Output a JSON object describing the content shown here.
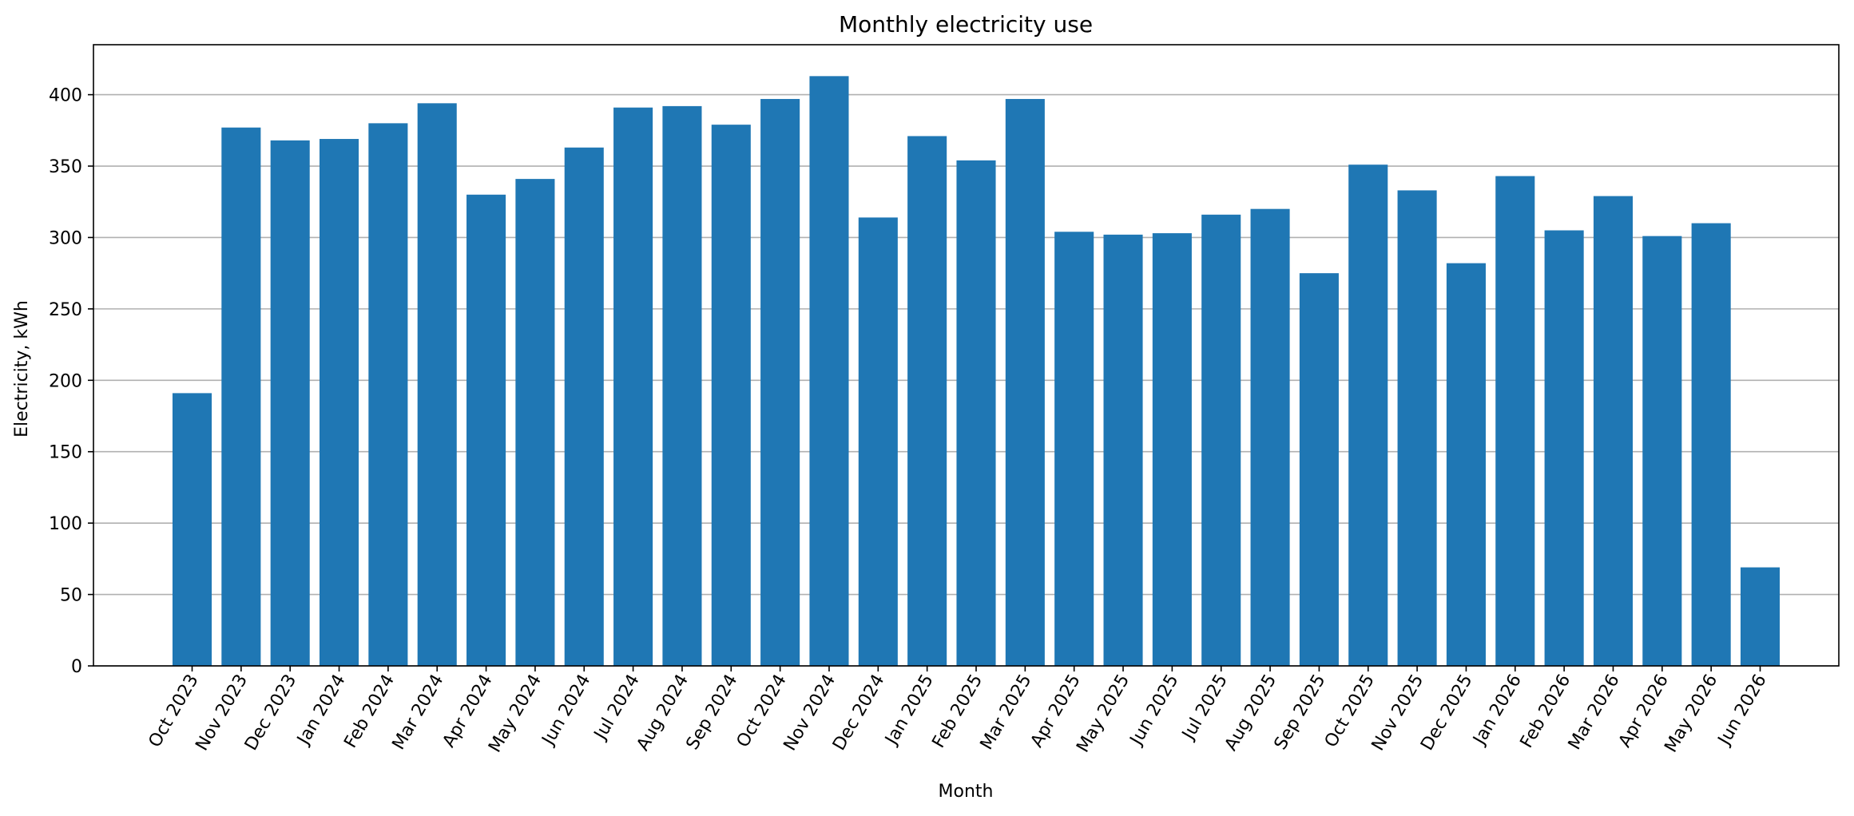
{
  "chart_data": {
    "type": "bar",
    "title": "Monthly electricity use",
    "xlabel": "Month",
    "ylabel": "Electricity, kWh",
    "categories": [
      "Oct 2023",
      "Nov 2023",
      "Dec 2023",
      "Jan 2024",
      "Feb 2024",
      "Mar 2024",
      "Apr 2024",
      "May 2024",
      "Jun 2024",
      "Jul 2024",
      "Aug 2024",
      "Sep 2024",
      "Oct 2024",
      "Nov 2024",
      "Dec 2024",
      "Jan 2025",
      "Feb 2025",
      "Mar 2025",
      "Apr 2025",
      "May 2025",
      "Jun 2025",
      "Jul 2025",
      "Aug 2025",
      "Sep 2025",
      "Oct 2025",
      "Nov 2025",
      "Dec 2025",
      "Jan 2026",
      "Feb 2026",
      "Mar 2026",
      "Apr 2026",
      "May 2026",
      "Jun 2026"
    ],
    "values": [
      191,
      377,
      368,
      369,
      380,
      394,
      330,
      341,
      363,
      391,
      392,
      379,
      397,
      413,
      314,
      371,
      354,
      397,
      304,
      302,
      303,
      316,
      320,
      275,
      351,
      333,
      282,
      343,
      305,
      329,
      301,
      310,
      69
    ],
    "ylim": [
      0,
      435
    ],
    "yticks": [
      0,
      50,
      100,
      150,
      200,
      250,
      300,
      350,
      400
    ],
    "grid": "horizontal",
    "bar_color": "#1f77b4"
  }
}
